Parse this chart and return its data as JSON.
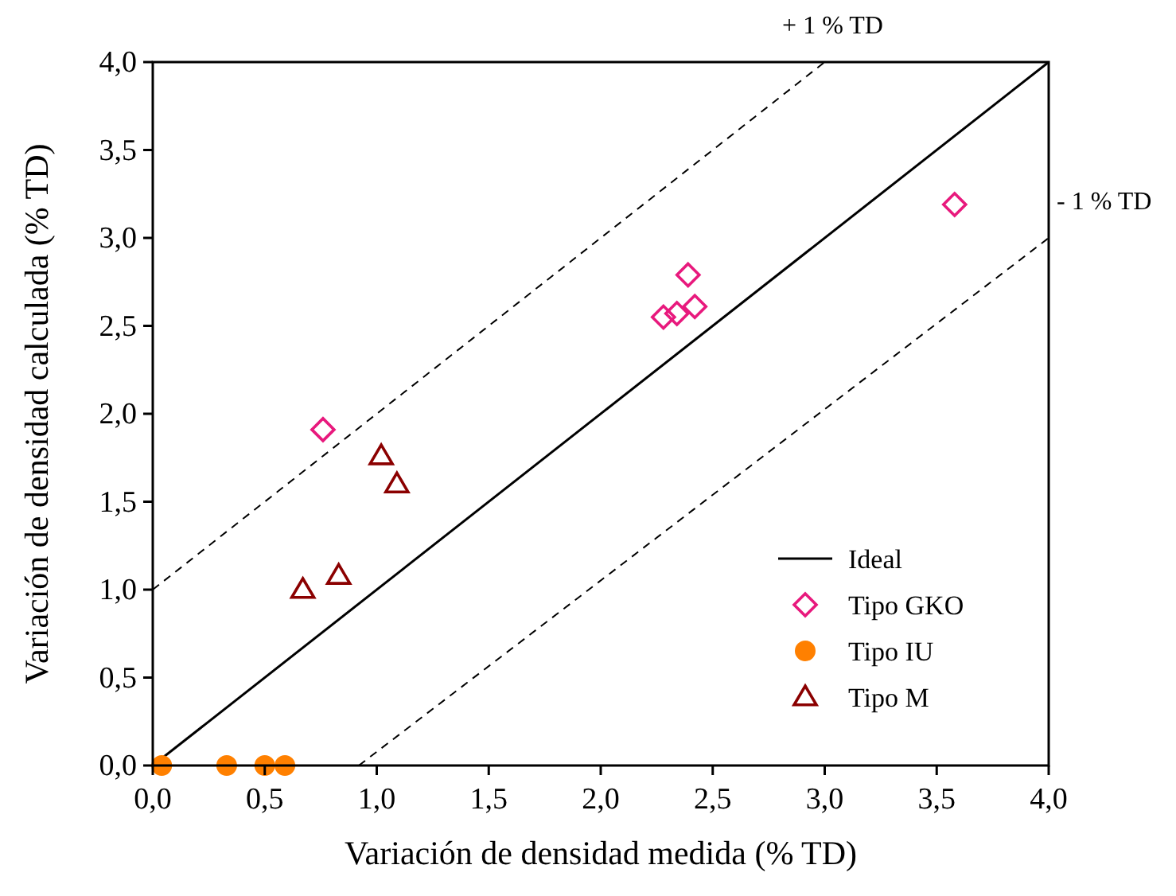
{
  "chart_data": {
    "type": "scatter",
    "xlabel": "Variación de densidad medida (% TD)",
    "ylabel": "Variación de densidad calculada (% TD)",
    "xlim": [
      0,
      4
    ],
    "ylim": [
      0,
      4
    ],
    "xticks": [
      {
        "value": 0,
        "label": "0,0"
      },
      {
        "value": 0.5,
        "label": "0,5"
      },
      {
        "value": 1,
        "label": "1,0"
      },
      {
        "value": 1.5,
        "label": "1,5"
      },
      {
        "value": 2,
        "label": "2,0"
      },
      {
        "value": 2.5,
        "label": "2,5"
      },
      {
        "value": 3,
        "label": "3,0"
      },
      {
        "value": 3.5,
        "label": "3,5"
      },
      {
        "value": 4,
        "label": "4,0"
      }
    ],
    "yticks": [
      {
        "value": 0,
        "label": "0,0"
      },
      {
        "value": 0.5,
        "label": "0,5"
      },
      {
        "value": 1,
        "label": "1,0"
      },
      {
        "value": 1.5,
        "label": "1,5"
      },
      {
        "value": 2,
        "label": "2,0"
      },
      {
        "value": 2.5,
        "label": "2,5"
      },
      {
        "value": 3,
        "label": "3,0"
      },
      {
        "value": 3.5,
        "label": "3,5"
      },
      {
        "value": 4,
        "label": "4,0"
      }
    ],
    "grid": false,
    "legend": "bottom right",
    "series": [
      {
        "name": "Ideal",
        "type": "line",
        "color": "#000000",
        "line_style": "solid",
        "marker": "none",
        "x": [
          0,
          4
        ],
        "values": [
          0,
          4
        ]
      },
      {
        "type": "line",
        "color": "#000000",
        "line_style": "dashed",
        "marker": "none",
        "x": [
          0,
          3
        ],
        "values": [
          1,
          4
        ]
      },
      {
        "type": "line",
        "color": "#000000",
        "line_style": "dashed",
        "marker": "none",
        "x": [
          0.92,
          4
        ],
        "values": [
          0,
          3
        ]
      },
      {
        "name": "Tipo GKO",
        "color": "#e8197d",
        "marker": "diamond",
        "x": [
          0.76,
          2.28,
          2.34,
          2.39,
          2.42,
          3.58
        ],
        "values": [
          1.91,
          2.55,
          2.57,
          2.79,
          2.61,
          3.19
        ]
      },
      {
        "name": "Tipo IU",
        "color": "#ff8000",
        "marker": "circle",
        "x": [
          0.04,
          0.33,
          0.5,
          0.59
        ],
        "values": [
          0,
          0,
          0,
          0
        ]
      },
      {
        "name": "Tipo M",
        "color": "#8b0000",
        "marker": "triangle",
        "x": [
          0.67,
          0.83,
          1.02,
          1.09
        ],
        "values": [
          1.0,
          1.08,
          1.76,
          1.6
        ]
      }
    ],
    "annotations": [
      {
        "text": "+ 1 % TD",
        "x": 3.0,
        "y": 4.0
      },
      {
        "text": "- 1 % TD",
        "x": 4.0,
        "y": 3.0
      }
    ]
  }
}
